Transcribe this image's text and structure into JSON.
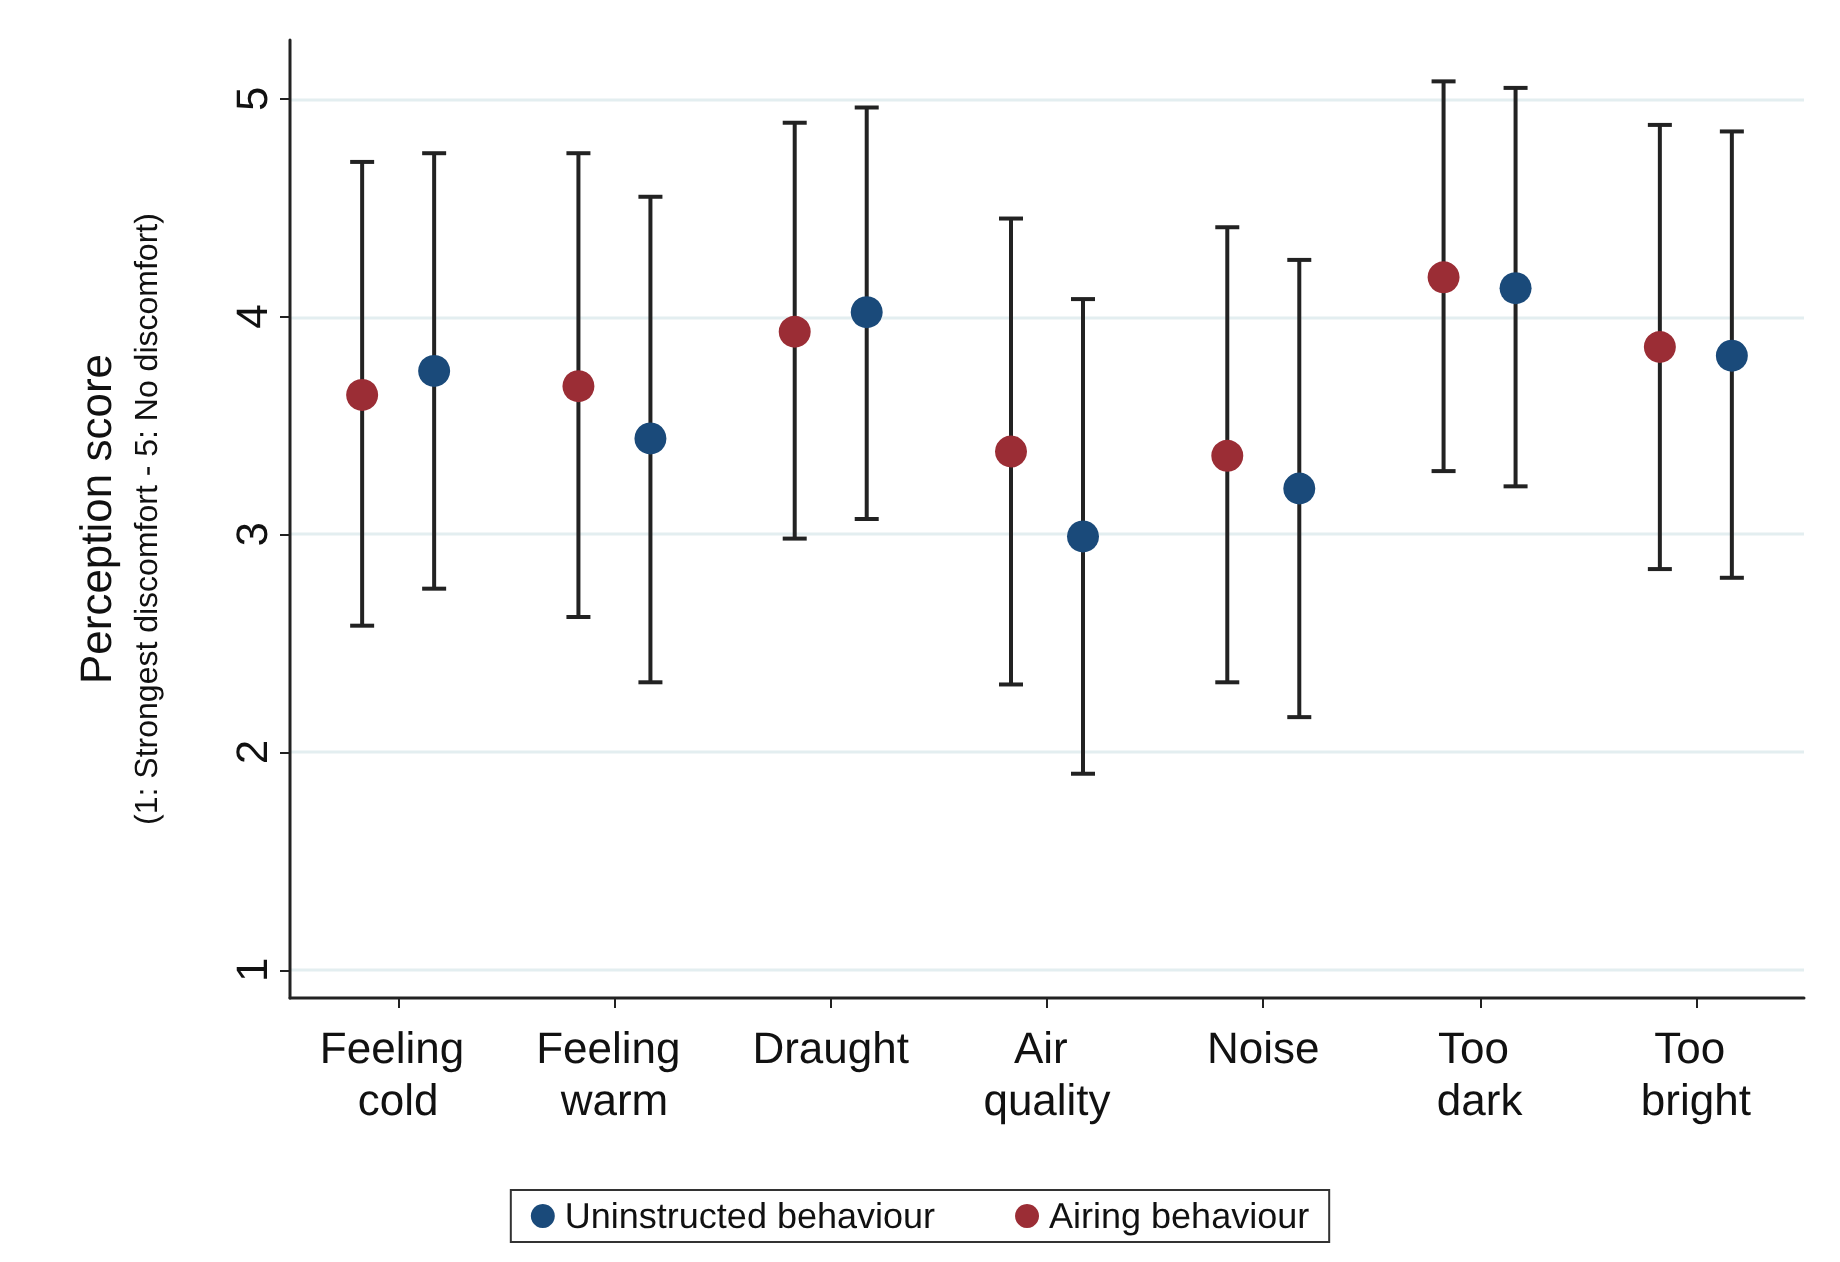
{
  "chart_data": {
    "type": "scatter",
    "ylabel": "Perception score\n(1: Strongest discomfort - 5: No discomfort)",
    "categories": [
      "Feeling cold",
      "Feeling warm",
      "Draught",
      "Air quality",
      "Noise",
      "Too dark",
      "Too bright"
    ],
    "series": [
      {
        "name": "Uninstructed behaviour",
        "color": "#1a4a7a",
        "values": [
          3.75,
          3.44,
          4.02,
          2.99,
          3.21,
          4.13,
          3.82
        ],
        "errors": [
          [
            2.75,
            4.75
          ],
          [
            2.32,
            4.55
          ],
          [
            3.07,
            4.96
          ],
          [
            1.9,
            4.08
          ],
          [
            2.16,
            4.26
          ],
          [
            3.22,
            5.05
          ],
          [
            2.8,
            4.85
          ]
        ]
      },
      {
        "name": "Airing behaviour",
        "color": "#9b2d35",
        "values": [
          3.64,
          3.68,
          3.93,
          3.38,
          3.36,
          4.18,
          3.86
        ],
        "errors": [
          [
            2.58,
            4.71
          ],
          [
            2.62,
            4.75
          ],
          [
            2.98,
            4.89
          ],
          [
            2.31,
            4.45
          ],
          [
            2.32,
            4.41
          ],
          [
            3.29,
            5.08
          ],
          [
            2.84,
            4.88
          ]
        ]
      }
    ],
    "ylim": [
      0.87,
      5.27
    ],
    "yticks": [
      1,
      2,
      3,
      4,
      5
    ],
    "grid": "y",
    "legend": "bottom",
    "marker": "circle"
  }
}
